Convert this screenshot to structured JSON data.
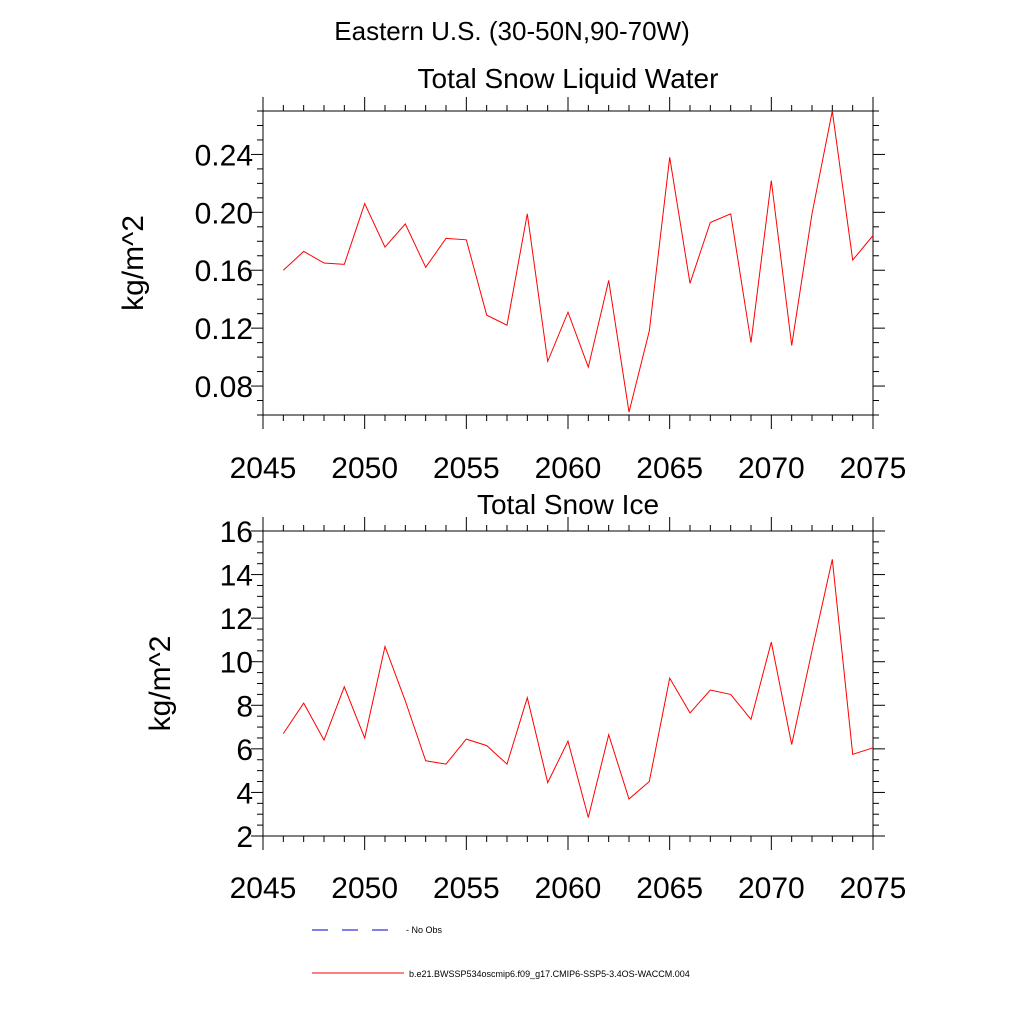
{
  "figure": {
    "supertitle": "Eastern U.S. (30-50N,90-70W)",
    "legend": [
      {
        "label": "No Obs",
        "color": "#0000cc",
        "dash": "dashed"
      },
      {
        "label": "b.e21.BWSSP534oscmip6.f09_g17.CMIP6-SSP5-3.4OS-WACCM.004",
        "color": "#ff0000",
        "dash": "solid"
      }
    ],
    "line_color": "#ff0000"
  },
  "chart_data": [
    {
      "type": "line",
      "title": "Total Snow Liquid Water",
      "xlabel": "",
      "ylabel": "kg/m^2",
      "xlim": [
        2045,
        2075
      ],
      "ylim": [
        0.06,
        0.27
      ],
      "xticks": [
        2045,
        2050,
        2055,
        2060,
        2065,
        2070,
        2075
      ],
      "xtick_labels": [
        "2045",
        "2050",
        "2055",
        "2060",
        "2065",
        "2070",
        "2075"
      ],
      "yticks": [
        0.08,
        0.12,
        0.16,
        0.2,
        0.24
      ],
      "ytick_labels": [
        "0.08",
        "0.12",
        "0.16",
        "0.20",
        "0.24"
      ],
      "yminor_step": 0.01,
      "grid": false,
      "series": [
        {
          "name": "b.e21.BWSSP534oscmip6.f09_g17.CMIP6-SSP5-3.4OS-WACCM.004",
          "x": [
            2046,
            2047,
            2048,
            2049,
            2050,
            2051,
            2052,
            2053,
            2054,
            2055,
            2056,
            2057,
            2058,
            2059,
            2060,
            2061,
            2062,
            2063,
            2064,
            2065,
            2066,
            2067,
            2068,
            2069,
            2070,
            2071,
            2072,
            2073,
            2074,
            2075
          ],
          "values": [
            0.16,
            0.173,
            0.165,
            0.164,
            0.206,
            0.176,
            0.192,
            0.162,
            0.182,
            0.181,
            0.129,
            0.122,
            0.199,
            0.097,
            0.131,
            0.093,
            0.153,
            0.062,
            0.118,
            0.238,
            0.151,
            0.193,
            0.199,
            0.11,
            0.222,
            0.108,
            0.199,
            0.27,
            0.167,
            0.184
          ]
        }
      ]
    },
    {
      "type": "line",
      "title": "Total Snow Ice",
      "xlabel": "",
      "ylabel": "kg/m^2",
      "xlim": [
        2045,
        2075
      ],
      "ylim": [
        2,
        16
      ],
      "xticks": [
        2045,
        2050,
        2055,
        2060,
        2065,
        2070,
        2075
      ],
      "xtick_labels": [
        "2045",
        "2050",
        "2055",
        "2060",
        "2065",
        "2070",
        "2075"
      ],
      "yticks": [
        2,
        4,
        6,
        8,
        10,
        12,
        14,
        16
      ],
      "ytick_labels": [
        "2",
        "4",
        "6",
        "8",
        "10",
        "12",
        "14",
        "16"
      ],
      "yminor_step": 0.5,
      "grid": false,
      "series": [
        {
          "name": "b.e21.BWSSP534oscmip6.f09_g17.CMIP6-SSP5-3.4OS-WACCM.004",
          "x": [
            2046,
            2047,
            2048,
            2049,
            2050,
            2051,
            2052,
            2053,
            2054,
            2055,
            2056,
            2057,
            2058,
            2059,
            2060,
            2061,
            2062,
            2063,
            2064,
            2065,
            2066,
            2067,
            2068,
            2069,
            2070,
            2071,
            2072,
            2073,
            2074,
            2075
          ],
          "values": [
            6.7,
            8.1,
            6.4,
            8.85,
            6.5,
            10.7,
            8.2,
            5.45,
            5.3,
            6.45,
            6.15,
            5.3,
            8.35,
            4.45,
            6.35,
            2.85,
            6.65,
            3.7,
            4.5,
            9.25,
            7.65,
            8.7,
            8.5,
            7.35,
            10.9,
            6.2,
            10.5,
            14.7,
            5.75,
            6.05
          ]
        }
      ]
    }
  ]
}
